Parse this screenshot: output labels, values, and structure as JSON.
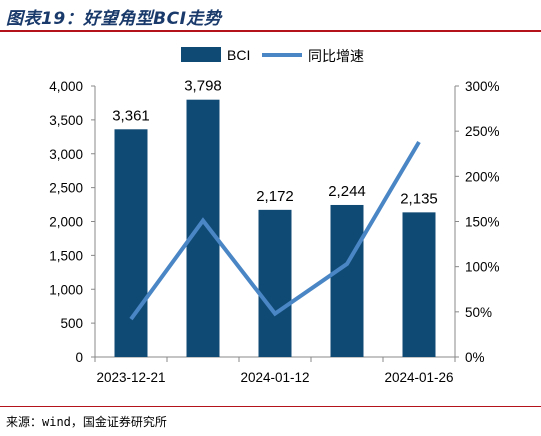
{
  "figure_title": "图表19：好望角型BCI走势",
  "source": "来源：wind，国金证券研究所",
  "colors": {
    "bar": "#0f4a75",
    "line": "#4a86c5",
    "rule": "#b4131b",
    "title": "#1a3a6b"
  },
  "chart_data": {
    "type": "bar",
    "categories": [
      "2023-12-21",
      "",
      "2024-01-12",
      "",
      "2024-01-26"
    ],
    "x_tick_labels": [
      "2023-12-21",
      "2024-01-12",
      "2024-01-26"
    ],
    "series": [
      {
        "name": "BCI",
        "type": "bar",
        "axis": "left",
        "values": [
          3361,
          3798,
          2172,
          2244,
          2135
        ],
        "data_labels": [
          "3,361",
          "3,798",
          "2,172",
          "2,244",
          "2,135"
        ]
      },
      {
        "name": "同比增速",
        "type": "line",
        "axis": "right",
        "values": [
          0.42,
          1.51,
          0.48,
          1.03,
          2.38
        ]
      }
    ],
    "y_left": {
      "range": [
        0,
        4000
      ],
      "ticks": [
        "0",
        "500",
        "1,000",
        "1,500",
        "2,000",
        "2,500",
        "3,000",
        "3,500",
        "4,000"
      ]
    },
    "y_right": {
      "range": [
        0,
        3
      ],
      "ticks": [
        "0%",
        "50%",
        "100%",
        "150%",
        "200%",
        "250%",
        "300%"
      ]
    },
    "legend": {
      "position": "top",
      "entries": [
        "BCI",
        "同比增速"
      ]
    },
    "grid": false
  }
}
